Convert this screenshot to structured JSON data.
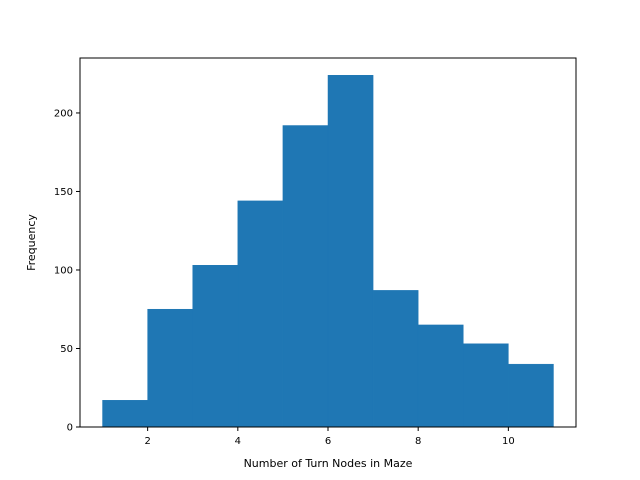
{
  "chart_data": {
    "type": "bar",
    "subtype": "histogram",
    "title": "",
    "xlabel": "Number of Turn Nodes in Maze",
    "ylabel": "Frequency",
    "xlim": [
      0.5,
      11.5
    ],
    "ylim": [
      0,
      235
    ],
    "bins": [
      {
        "start": 1,
        "end": 2,
        "value": 17
      },
      {
        "start": 2,
        "end": 3,
        "value": 75
      },
      {
        "start": 3,
        "end": 4,
        "value": 103
      },
      {
        "start": 4,
        "end": 5,
        "value": 144
      },
      {
        "start": 5,
        "end": 6,
        "value": 192
      },
      {
        "start": 6,
        "end": 7,
        "value": 224
      },
      {
        "start": 7,
        "end": 8,
        "value": 87
      },
      {
        "start": 8,
        "end": 9,
        "value": 65
      },
      {
        "start": 9,
        "end": 10,
        "value": 53
      },
      {
        "start": 10,
        "end": 11,
        "value": 40
      }
    ],
    "x_ticks": [
      {
        "value": 2,
        "label": "2"
      },
      {
        "value": 4,
        "label": "4"
      },
      {
        "value": 6,
        "label": "6"
      },
      {
        "value": 8,
        "label": "8"
      },
      {
        "value": 10,
        "label": "10"
      }
    ],
    "y_ticks": [
      {
        "value": 0,
        "label": "0"
      },
      {
        "value": 50,
        "label": "50"
      },
      {
        "value": 100,
        "label": "100"
      },
      {
        "value": 150,
        "label": "150"
      },
      {
        "value": 200,
        "label": "200"
      }
    ],
    "grid": false,
    "legend": "none",
    "bar_color": "#1f77b4"
  }
}
